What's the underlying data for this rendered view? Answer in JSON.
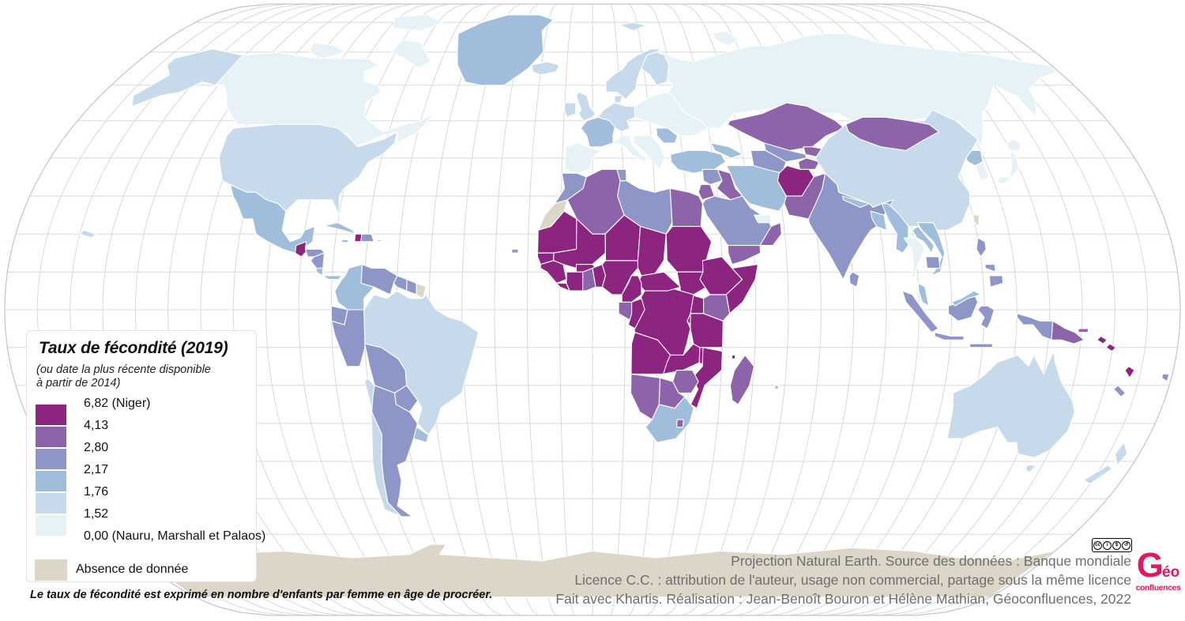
{
  "map": {
    "ocean_color": "#ffffff",
    "graticule_color": "#d8d8d8",
    "outline_color": "#c6c6c6",
    "country_border_color": "#ffffff",
    "projection": "Natural Earth",
    "regions": {
      "antarctica": "nd",
      "russia": "c6",
      "canada": "c6",
      "baffin": "c6",
      "victoria_island": "c6",
      "ellesmere": "c6",
      "greenland": "c4",
      "alaska": "c5",
      "usa": "c5",
      "hawaii": "c5",
      "mexico": "c4",
      "guatemala": "c1",
      "honduras": "c3",
      "nicaragua": "c3",
      "costa_rica": "c4",
      "panama": "c4",
      "cuba": "c4",
      "haiti": "c1",
      "dominican_republic": "c3",
      "jamaica": "c4",
      "puerto_rico": "c5",
      "colombia": "c4",
      "venezuela": "c3",
      "guyana": "c3",
      "suriname": "c3",
      "french_guiana": "nd",
      "ecuador": "c3",
      "brazil": "c5",
      "peru": "c3",
      "bolivia": "c3",
      "paraguay": "c3",
      "uruguay": "c4",
      "argentina": "c3",
      "chile": "c5",
      "iceland": "c5",
      "united_kingdom": "c5",
      "ireland": "c5",
      "norway_sweden": "c5",
      "finland": "c5",
      "denmark": "c5",
      "svalbard": "c5",
      "novaya_zemlya": "c6",
      "france": "c4",
      "iberia": "c6",
      "germany_benelux": "c5",
      "italy": "c6",
      "east_europe": "c6",
      "balkans": "c6",
      "romania": "c4",
      "caucasus": "c4",
      "turkey": "c4",
      "syria": "c3",
      "iraq": "c2",
      "israel_jordan": "c2",
      "saudi_arabia": "c3",
      "yemen": "c2",
      "oman": "c2",
      "uae": "c6",
      "iran": "c4",
      "kazakhstan": "c2",
      "uzbekistan": "c3",
      "turkmenistan": "c3",
      "kyrgyzstan": "c2",
      "tajikistan": "c2",
      "afghanistan": "c1",
      "pakistan": "c2",
      "china": "c5",
      "india": "c3",
      "nepal": "c4",
      "bangladesh": "c4",
      "sri_lanka": "c3",
      "mongolia": "c2",
      "north_korea": "c4",
      "south_korea": "c6",
      "japan_honshu": "c6",
      "hokkaido": "c6",
      "taiwan": "nd",
      "myanmar": "c4",
      "thailand": "c6",
      "laos": "c4",
      "vietnam": "c4",
      "cambodia": "c3",
      "malaysia_peninsular": "c4",
      "indonesia_borneo": "c3",
      "malaysia_borneo": "c4",
      "sumatra": "c3",
      "java": "c3",
      "sulawesi": "c3",
      "lesser_sunda": "c3",
      "west_papua": "c3",
      "papua_new_guinea": "c2",
      "new_britain": "c2",
      "solomon_islands": "c1",
      "solomon_islands_2": "c1",
      "vanuatu": "c1",
      "fiji": "c3",
      "new_caledonia": "c3",
      "luzon": "c3",
      "visayas": "c3",
      "mindanao": "c3",
      "australia": "c5",
      "tasmania": "c5",
      "nz_north": "c5",
      "nz_south": "c5",
      "morocco": "c3",
      "western_sahara": "nd",
      "algeria": "c2",
      "tunisia": "c3",
      "libya": "c3",
      "egypt": "c2",
      "mauritania": "c1",
      "senegal": "c1",
      "guinea": "c1",
      "liberia": "c1",
      "mali": "c1",
      "burkina_faso": "c1",
      "cote_divoire": "c1",
      "ghana": "c2",
      "togo_benin": "c1",
      "nigeria": "c1",
      "niger": "c1",
      "chad": "c1",
      "sudan": "c1",
      "south_sudan": "c1",
      "ethiopia": "c1",
      "somalia": "c1",
      "kenya": "c2",
      "uganda": "c1",
      "rwanda_burundi": "c1",
      "drc": "c1",
      "car": "c1",
      "cameroon": "c1",
      "gabon": "c2",
      "congo": "c1",
      "angola": "c1",
      "zambia": "c1",
      "tanzania": "c1",
      "malawi": "c1",
      "mozambique": "c1",
      "zimbabwe": "c2",
      "botswana": "c2",
      "namibia": "c2",
      "south_africa": "c4",
      "lesotho": "c2",
      "madagascar": "c2",
      "comoros": "c1",
      "mauritius": "c4",
      "cape_verde": "c3"
    }
  },
  "legend": {
    "title": "Taux de fécondité (2019)",
    "subtitle_line1": "(ou date la plus récente disponible",
    "subtitle_line2": "à partir de 2014)",
    "swatches": [
      {
        "class": "c1",
        "color": "#8B2580"
      },
      {
        "class": "c2",
        "color": "#8D64AA"
      },
      {
        "class": "c3",
        "color": "#8E96C8"
      },
      {
        "class": "c4",
        "color": "#A0BDDB"
      },
      {
        "class": "c5",
        "color": "#C6DAEC"
      },
      {
        "class": "c6",
        "color": "#E7F2F6"
      }
    ],
    "tick_labels": [
      "6,82 (Niger)",
      "4,13",
      "2,80",
      "2,17",
      "1,76",
      "1,52",
      "0,00 (Nauru, Marshall et Palaos)"
    ],
    "no_data": {
      "class": "nd",
      "color": "#DCD6C9",
      "label": "Absence de donnée"
    }
  },
  "footnote": "Le taux de fécondité est exprimé en nombre d'enfants par femme en âge de procréer.",
  "attribution": {
    "line1": "Projection Natural Earth. Source des données : Banque mondiale",
    "line2": "Licence C.C. : attribution de l'auteur, usage non commercial, partage sous la même licence",
    "line3": "Fait avec Khartis. Réalisation : Jean-Benoît Bouron et Hélène Mathian, Géoconfluences, 2022"
  },
  "logo": {
    "geo_g": "G",
    "geo_eo": "éo",
    "confluences": "confluences",
    "color": "#E0195E"
  },
  "cc_badge": {
    "label": "CC BY-NC-SA",
    "icons": [
      "cc",
      "by",
      "nc",
      "sa"
    ],
    "glyphs": [
      "cc",
      "i",
      "$",
      "↺"
    ]
  }
}
